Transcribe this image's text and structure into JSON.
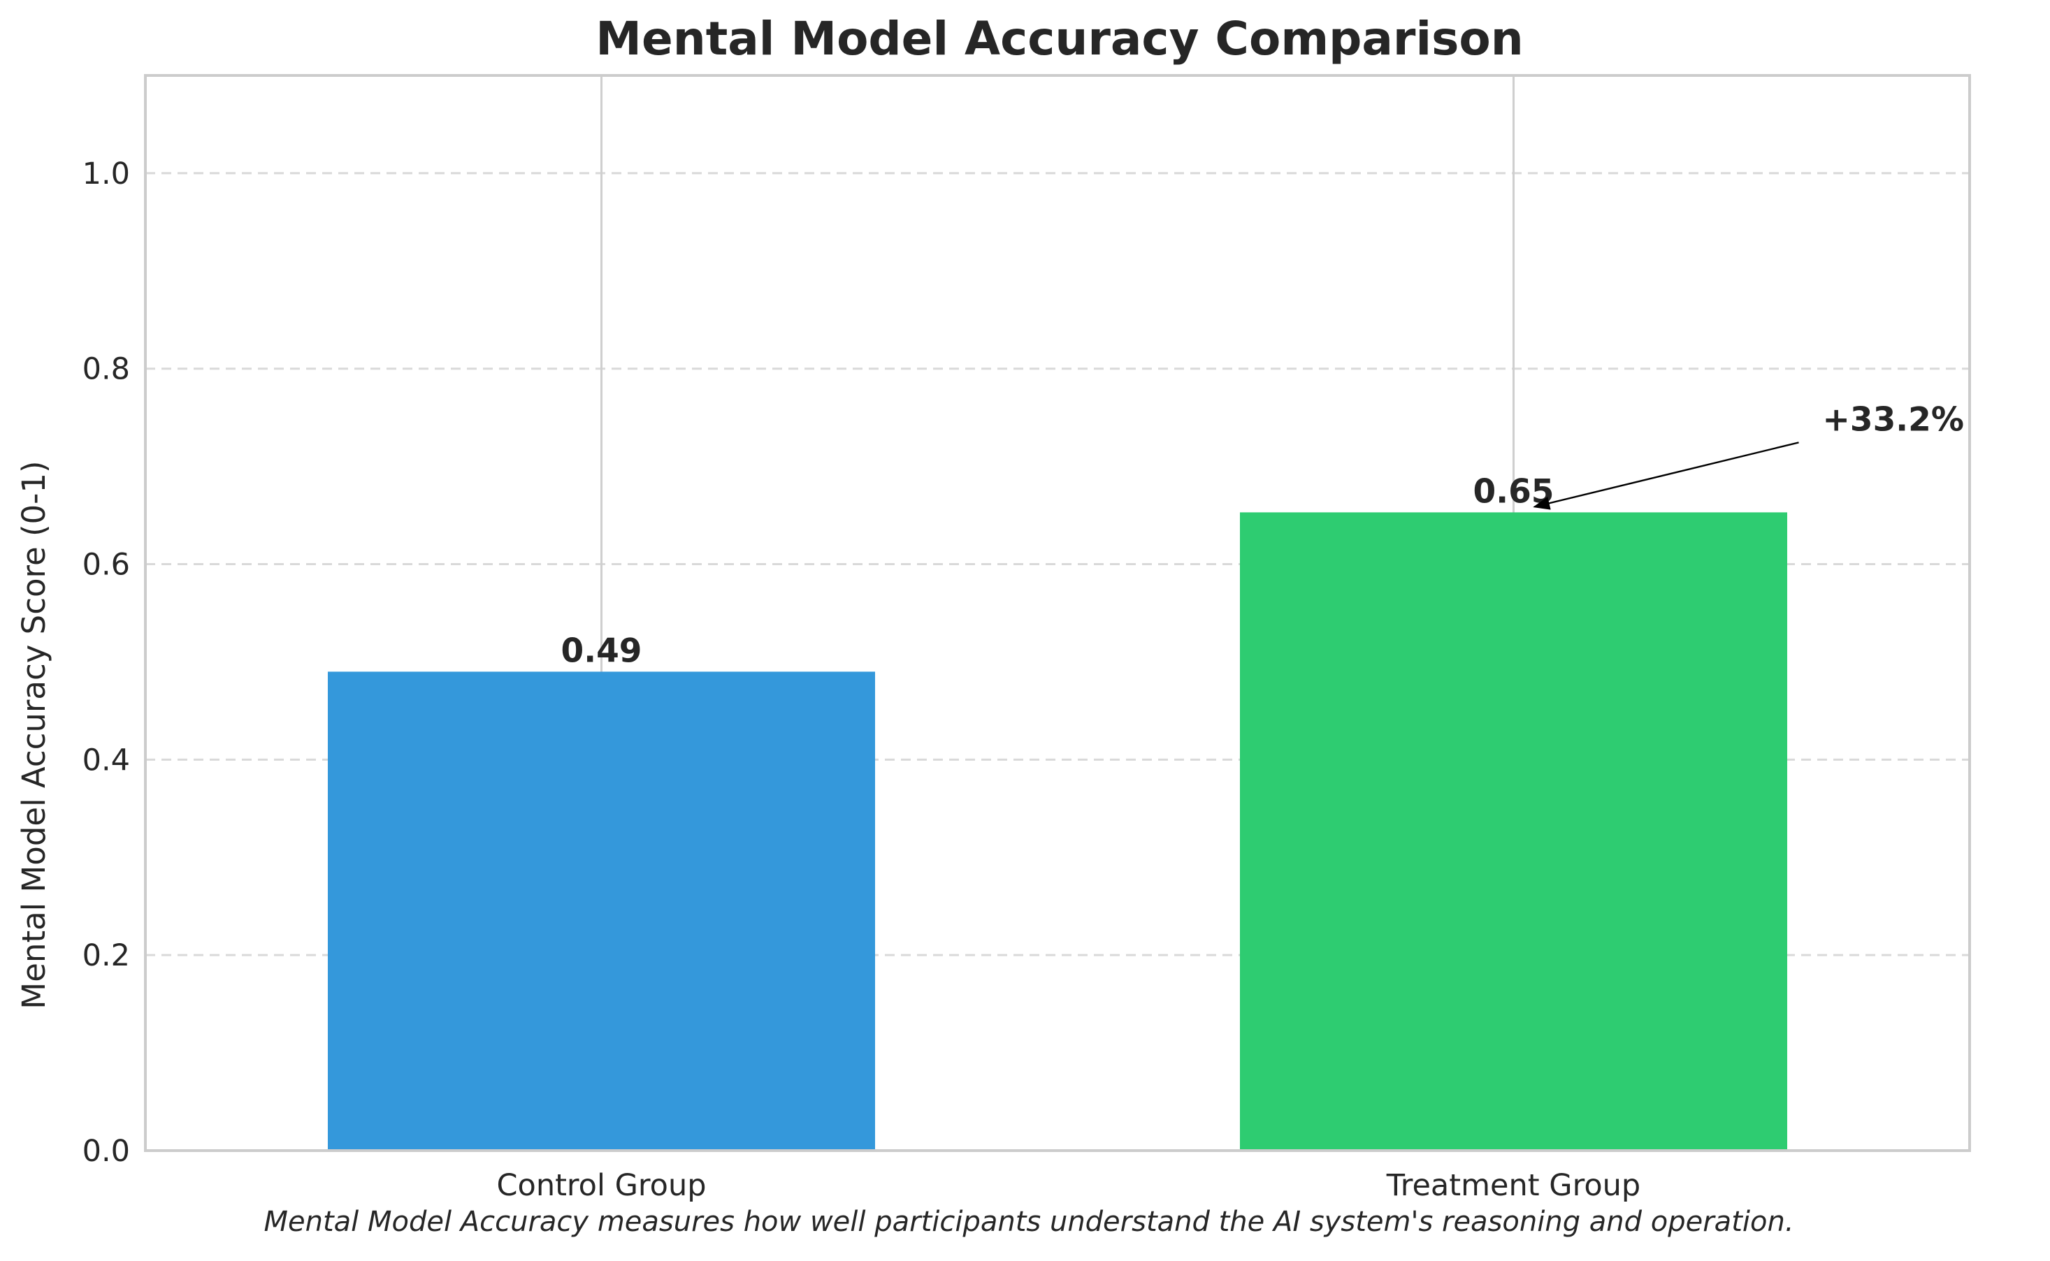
{
  "chart_data": {
    "type": "bar",
    "title": "Mental Model Accuracy Comparison",
    "xlabel": "",
    "ylabel": "Mental Model Accuracy Score (0-1)",
    "categories": [
      "Control Group",
      "Treatment Group"
    ],
    "values": [
      0.49,
      0.653
    ],
    "value_labels": [
      "0.49",
      "0.65"
    ],
    "colors": [
      "#3498db",
      "#2ecc71"
    ],
    "ylim": [
      0,
      1.1
    ],
    "yticks": [
      0.0,
      0.2,
      0.4,
      0.6,
      0.8,
      1.0
    ],
    "ytick_labels": [
      "0.0",
      "0.2",
      "0.4",
      "0.6",
      "0.8",
      "1.0"
    ],
    "grid": "y-dashed, x-solid",
    "legend": "none",
    "annotation": {
      "text": "+33.2%",
      "target": "Treatment Group"
    },
    "caption": "Mental Model Accuracy measures how well participants understand the AI system's reasoning and operation."
  }
}
